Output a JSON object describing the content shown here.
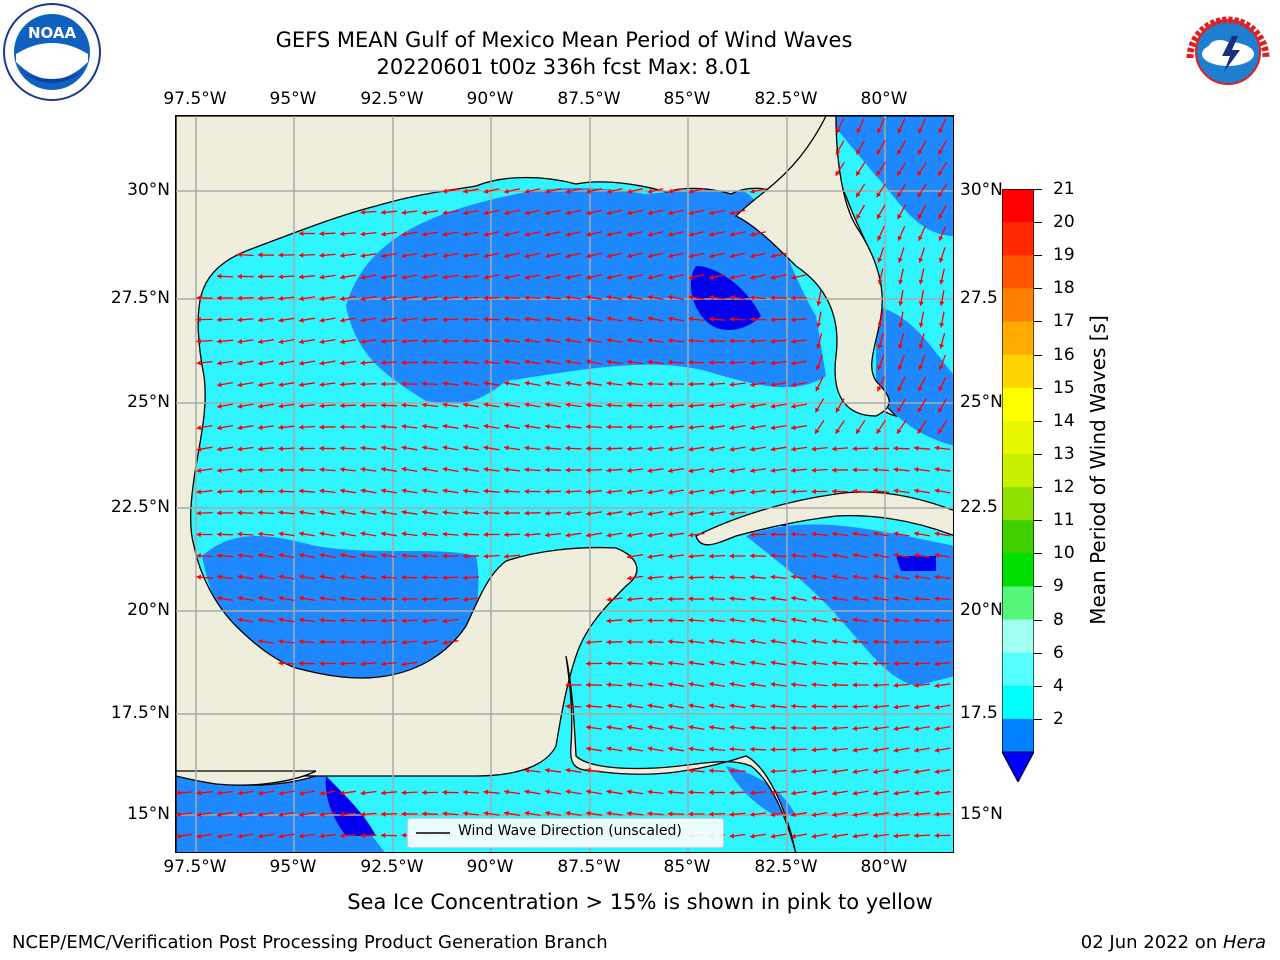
{
  "header": {
    "title_line1": "GEFS MEAN Gulf of Mexico Mean Period of Wind Waves",
    "title_line2": "20220601 t00z 336h fcst   Max: 8.01"
  },
  "logos": {
    "noaa_text": "NOAA",
    "noaa_ring": "NATIONAL OCEANIC AND ATMOSPHERIC ADMINISTRATION · U.S. DEPARTMENT OF COMMERCE",
    "nws_ring": "NATIONAL WEATHER SERVICE"
  },
  "axes": {
    "lon_ticks": [
      "97.5°W",
      "95°W",
      "92.5°W",
      "90°W",
      "87.5°W",
      "85°W",
      "82.5°W",
      "80°W"
    ],
    "lat_ticks": [
      "30°N",
      "27.5°N",
      "25°N",
      "22.5°N",
      "20°N",
      "17.5°N",
      "15°N"
    ],
    "lat_ticks_right": [
      "30°N",
      "27.5",
      "25°N",
      "22.5",
      "20°N",
      "17.5",
      "15°N"
    ]
  },
  "legend": {
    "label": "Wind Wave Direction (unscaled)"
  },
  "colorbar": {
    "title": "Mean Period of Wind Waves [s]",
    "labels": [
      "21",
      "20",
      "19",
      "18",
      "17",
      "16",
      "15",
      "14",
      "13",
      "12",
      "11",
      "10",
      "9",
      "8",
      "6",
      "4",
      "2"
    ],
    "colors": [
      "#ff0000",
      "#ff2a00",
      "#ff5500",
      "#ff8000",
      "#ffaa00",
      "#ffd400",
      "#ffff00",
      "#e6f700",
      "#c8f000",
      "#8ee000",
      "#40d000",
      "#00e000",
      "#55f57a",
      "#a0fff0",
      "#55ffff",
      "#00ffff",
      "#0080ff"
    ],
    "extend_color": "#0000ff"
  },
  "colors": {
    "land": "#efeddc",
    "water_light": "#2ef5ff",
    "water_mid": "#1e88ff",
    "water_deep": "#0000ee",
    "arrow": "#ff0000",
    "grid": "#a9a9a9"
  },
  "footer": {
    "note": "Sea Ice Concentration > 15% is shown in pink to yellow",
    "left": "NCEP/EMC/Verification Post Processing Product Generation Branch",
    "date": "02 Jun 2022 on ",
    "machine": "Hera"
  }
}
